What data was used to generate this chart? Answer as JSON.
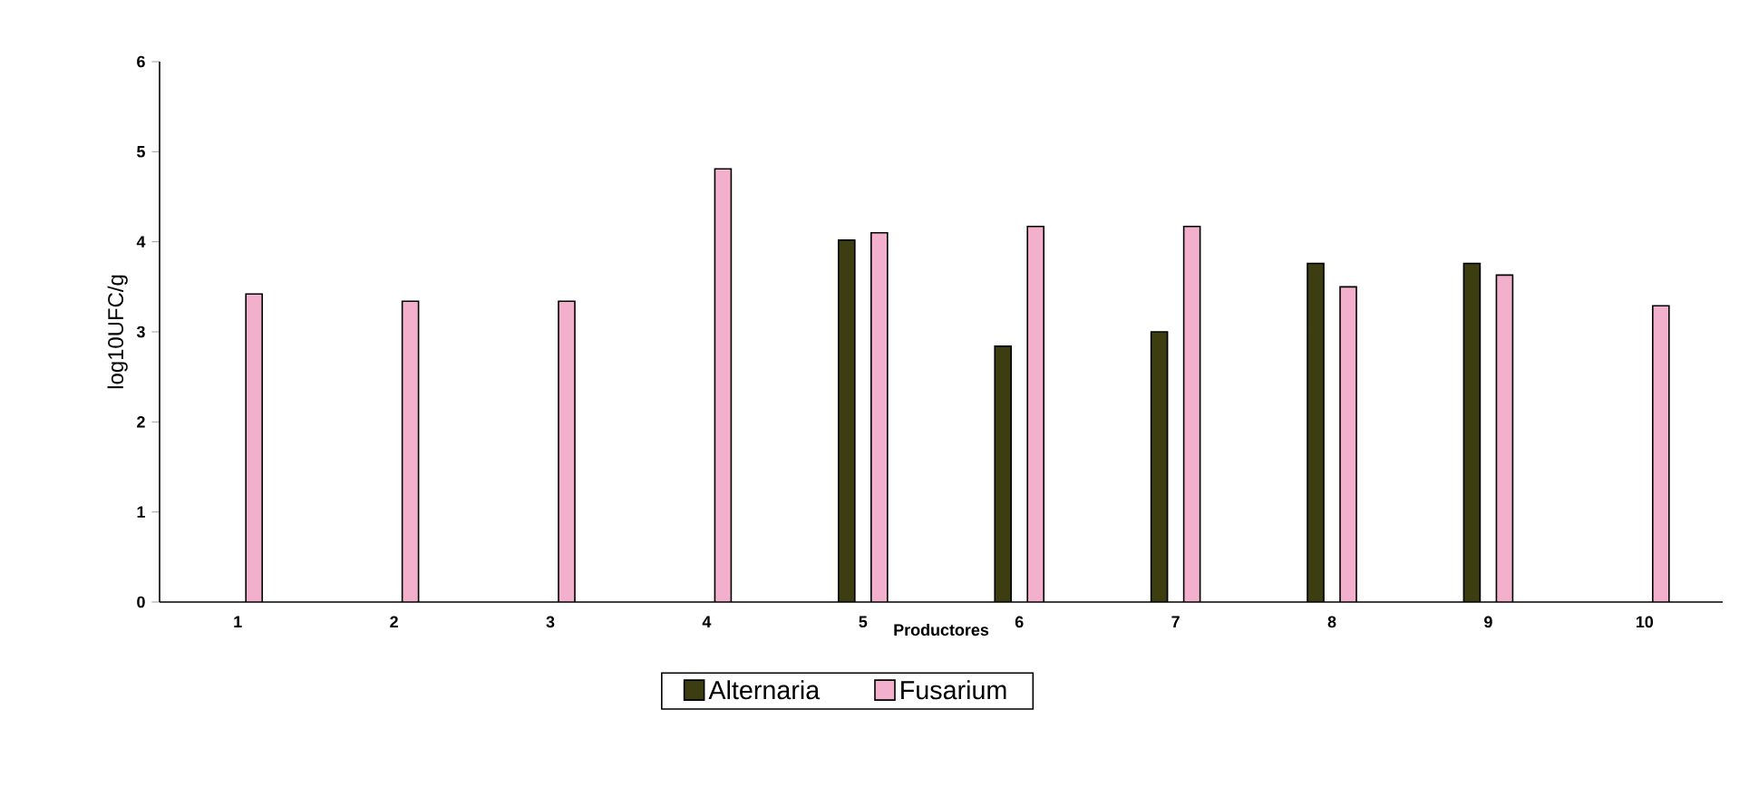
{
  "chart_data": {
    "type": "bar",
    "xlabel": "Productores",
    "ylabel": "log10UFC/g",
    "categories": [
      "1",
      "2",
      "3",
      "4",
      "5",
      "6",
      "7",
      "8",
      "9",
      "10"
    ],
    "series": [
      {
        "name": "Alternaria",
        "color": "#3d3d12",
        "values": [
          null,
          null,
          null,
          null,
          4.02,
          2.84,
          3.0,
          3.76,
          3.76,
          null
        ]
      },
      {
        "name": "Fusarium",
        "color": "#f2b0cc",
        "values": [
          3.42,
          3.34,
          3.34,
          4.81,
          4.1,
          4.17,
          4.17,
          3.5,
          3.63,
          3.29
        ]
      }
    ],
    "ylim": [
      0,
      6
    ],
    "yticks": [
      0,
      1,
      2,
      3,
      4,
      5,
      6
    ],
    "legend": "bottom"
  }
}
